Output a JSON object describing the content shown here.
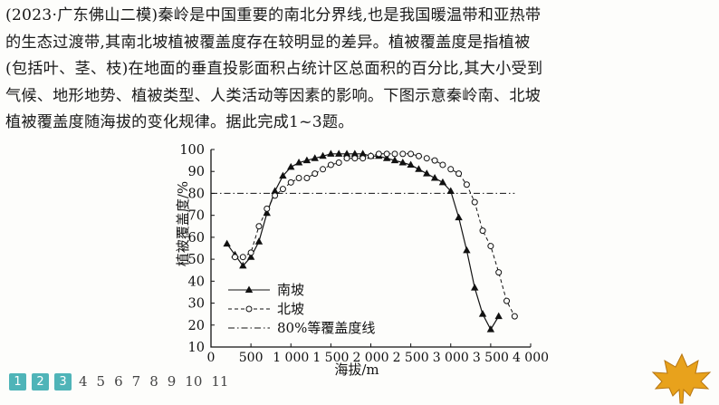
{
  "question": {
    "text": "(2023·广东佛山二模)秦岭是中国重要的南北分界线,也是我国暖温带和亚热带\n的生态过渡带,其南北坡植被覆盖度存在较明显的差异。植被覆盖度是指植被\n(包括叶、茎、枝)在地面的垂直投影面积占统计区总面积的百分比,其大小受到\n气候、地形地势、植被类型、人类活动等因素的影响。下图示意秦岭南、北坡\n植被覆盖度随海拔的变化规律。据此完成1~3题。"
  },
  "chart_data": {
    "type": "line",
    "xlabel": "海拔/m",
    "ylabel": "植被覆盖度/%",
    "xlim": [
      0,
      4000
    ],
    "ylim": [
      10,
      100
    ],
    "x_ticks": [
      0,
      500,
      1000,
      1500,
      2000,
      2500,
      3000,
      3500,
      4000
    ],
    "x_tick_labels": [
      "0",
      "500",
      "1 000",
      "1 500",
      "2 000",
      "2 500",
      "3 000",
      "3 500",
      "4 000"
    ],
    "y_ticks": [
      10,
      20,
      30,
      40,
      50,
      60,
      70,
      80,
      90,
      100
    ],
    "y_tick_labels": [
      "10",
      "20",
      "30",
      "40",
      "50",
      "60",
      "70",
      "80",
      "90",
      "100"
    ],
    "legend_position": "bottom-left",
    "series": [
      {
        "name": "南坡",
        "line_style": "solid",
        "marker": "filled-triangle",
        "color": "#111111",
        "points": [
          [
            200,
            57
          ],
          [
            300,
            52
          ],
          [
            400,
            47
          ],
          [
            500,
            51
          ],
          [
            600,
            58
          ],
          [
            700,
            71
          ],
          [
            800,
            81
          ],
          [
            900,
            88
          ],
          [
            1000,
            92
          ],
          [
            1100,
            94
          ],
          [
            1200,
            95
          ],
          [
            1300,
            96
          ],
          [
            1400,
            97
          ],
          [
            1500,
            98
          ],
          [
            1600,
            98
          ],
          [
            1700,
            98
          ],
          [
            1800,
            98
          ],
          [
            1900,
            98
          ],
          [
            2000,
            97
          ],
          [
            2100,
            97
          ],
          [
            2200,
            96
          ],
          [
            2300,
            95
          ],
          [
            2400,
            94
          ],
          [
            2500,
            93
          ],
          [
            2600,
            91
          ],
          [
            2700,
            89
          ],
          [
            2800,
            87
          ],
          [
            2900,
            85
          ],
          [
            3000,
            81
          ],
          [
            3100,
            69
          ],
          [
            3200,
            54
          ],
          [
            3300,
            37
          ],
          [
            3400,
            25
          ],
          [
            3500,
            18
          ],
          [
            3600,
            24
          ]
        ]
      },
      {
        "name": "北坡",
        "line_style": "dashed",
        "marker": "open-circle",
        "color": "#111111",
        "points": [
          [
            300,
            51
          ],
          [
            400,
            51
          ],
          [
            500,
            53
          ],
          [
            600,
            65
          ],
          [
            700,
            73
          ],
          [
            800,
            79
          ],
          [
            900,
            82
          ],
          [
            1000,
            85
          ],
          [
            1100,
            87
          ],
          [
            1200,
            87
          ],
          [
            1300,
            89
          ],
          [
            1400,
            91
          ],
          [
            1500,
            93
          ],
          [
            1600,
            94
          ],
          [
            1700,
            96
          ],
          [
            1800,
            96
          ],
          [
            1900,
            96
          ],
          [
            2000,
            97
          ],
          [
            2100,
            98
          ],
          [
            2200,
            98
          ],
          [
            2300,
            98
          ],
          [
            2400,
            98
          ],
          [
            2500,
            98
          ],
          [
            2600,
            97
          ],
          [
            2700,
            96
          ],
          [
            2800,
            95
          ],
          [
            2900,
            93
          ],
          [
            3000,
            91
          ],
          [
            3100,
            89
          ],
          [
            3200,
            84
          ],
          [
            3300,
            76
          ],
          [
            3400,
            63
          ],
          [
            3500,
            56
          ],
          [
            3600,
            44
          ],
          [
            3700,
            31
          ],
          [
            3800,
            24
          ]
        ]
      },
      {
        "name": "80%等覆盖度线",
        "line_style": "dash-dot",
        "marker": "none",
        "color": "#111111",
        "points": [
          [
            0,
            80
          ],
          [
            3800,
            80
          ]
        ]
      }
    ]
  },
  "pager": {
    "active": [
      "1",
      "2",
      "3"
    ],
    "plain": [
      "4",
      "5",
      "6",
      "7",
      "8",
      "9",
      "10",
      "11"
    ],
    "active_color": "#4fb4b8"
  },
  "decoration": {
    "icon": "maple-leaf-icon",
    "color": "#e8a21c"
  }
}
